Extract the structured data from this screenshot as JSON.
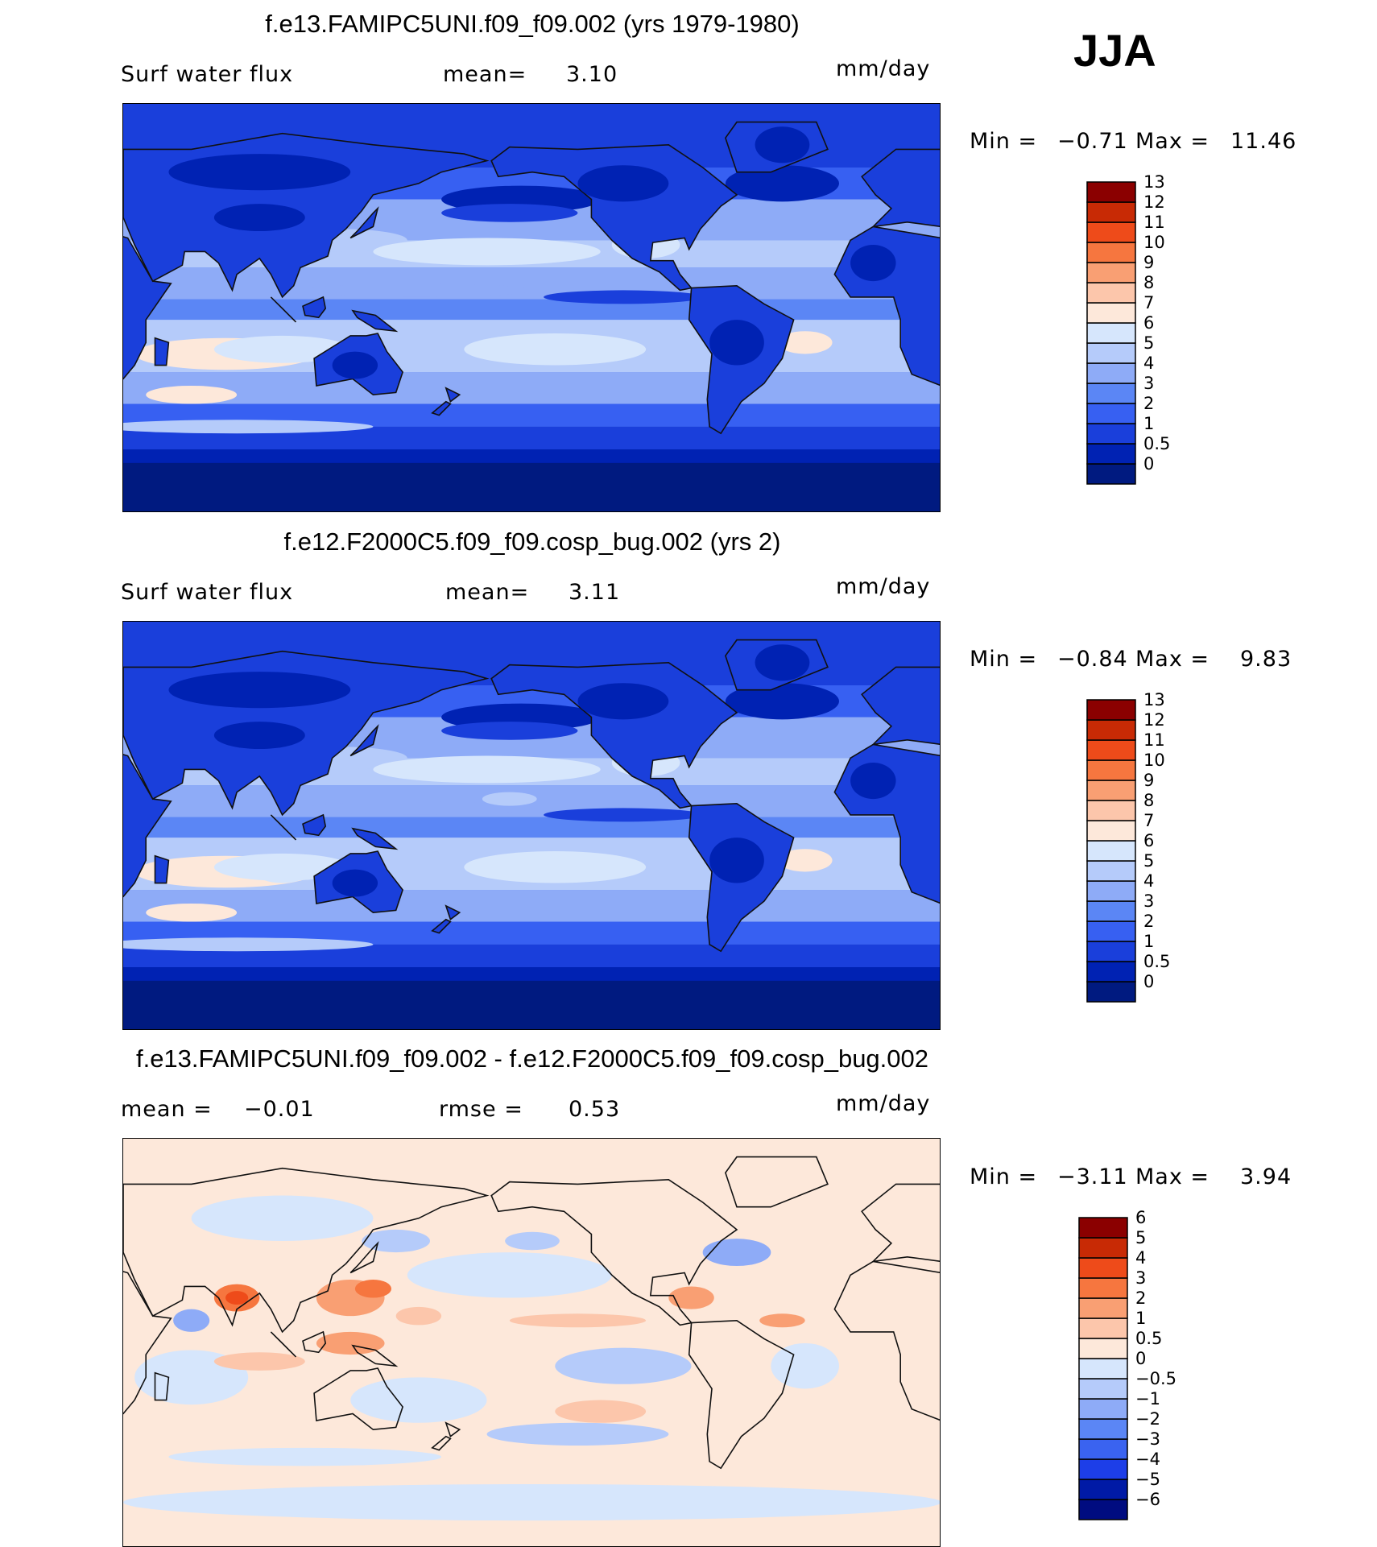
{
  "season": "JJA",
  "colors": {
    "abs_scale": [
      "#001a80",
      "#0022b3",
      "#1a3fdb",
      "#3760f2",
      "#5b86f5",
      "#8eabf7",
      "#b5cbfa",
      "#d6e6fc",
      "#fde8da",
      "#fcc6ab",
      "#f99f73",
      "#f6763f",
      "#ee4b1a",
      "#c82a05",
      "#8b0000"
    ],
    "diff_scale": [
      "#000c80",
      "#001aa6",
      "#1d3ee8",
      "#3a63f0",
      "#5b86f5",
      "#8eabf7",
      "#b5cbfa",
      "#d6e6fc",
      "#fde8da",
      "#fcc6ab",
      "#f99f73",
      "#f6763f",
      "#ee4b1a",
      "#c82a05",
      "#8b0000"
    ]
  },
  "chart_data": [
    {
      "type": "heatmap",
      "title": "f.e13.FAMIPC5UNI.f09_f09.002 (yrs 1979-1980)",
      "variable": "Surf water flux",
      "mean_label": "mean=",
      "mean": "3.10",
      "units": "mm/day",
      "min_label": "Min =",
      "min": "−0.71",
      "max_label": "Max =",
      "max": "11.46",
      "colorbar_levels": [
        "0",
        "0.5",
        "1",
        "2",
        "3",
        "4",
        "5",
        "6",
        "7",
        "8",
        "9",
        "10",
        "11",
        "12",
        "13"
      ]
    },
    {
      "type": "heatmap",
      "title": "f.e12.F2000C5.f09_f09.cosp_bug.002 (yrs 2)",
      "variable": "Surf water flux",
      "mean_label": "mean=",
      "mean": "3.11",
      "units": "mm/day",
      "min_label": "Min =",
      "min": "−0.84",
      "max_label": "Max =",
      "max": "9.83",
      "colorbar_levels": [
        "0",
        "0.5",
        "1",
        "2",
        "3",
        "4",
        "5",
        "6",
        "7",
        "8",
        "9",
        "10",
        "11",
        "12",
        "13"
      ]
    },
    {
      "type": "heatmap",
      "title": "f.e13.FAMIPC5UNI.f09_f09.002 - f.e12.F2000C5.f09_f09.cosp_bug.002",
      "mean_label": "mean =",
      "mean": "−0.01",
      "rmse_label": "rmse =",
      "rmse": "0.53",
      "units": "mm/day",
      "min_label": "Min =",
      "min": "−3.11",
      "max_label": "Max =",
      "max": "3.94",
      "colorbar_levels": [
        "−6",
        "−5",
        "−4",
        "−3",
        "−2",
        "−1",
        "−0.5",
        "0",
        "0.5",
        "1",
        "2",
        "3",
        "4",
        "5",
        "6"
      ]
    }
  ]
}
